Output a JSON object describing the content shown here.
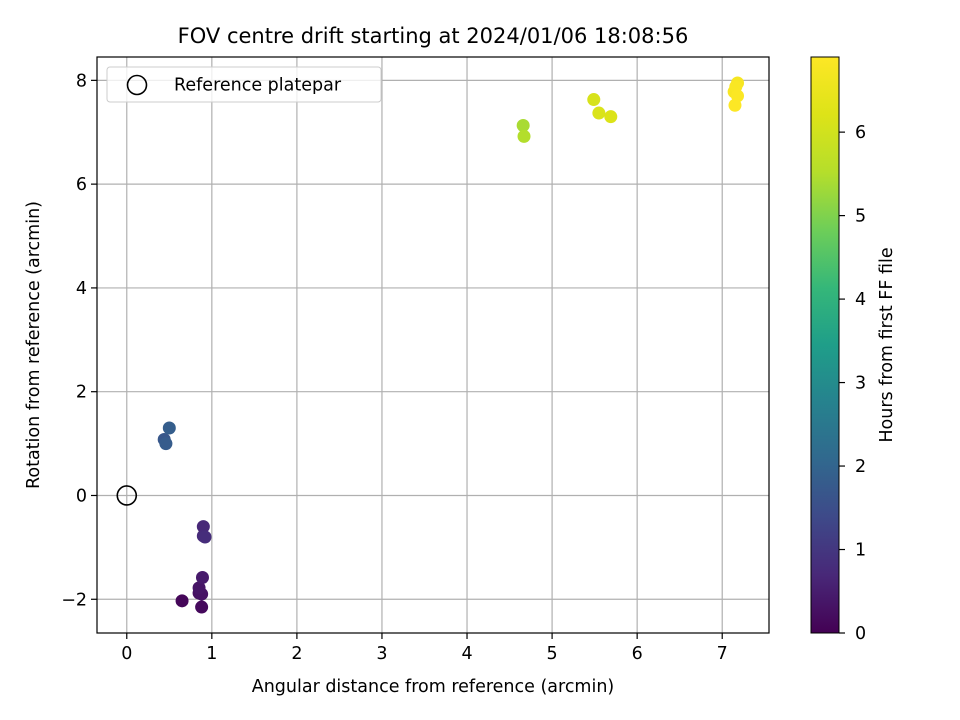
{
  "chart_data": {
    "type": "scatter",
    "title": "FOV centre drift starting at 2024/01/06 18:08:56",
    "xlabel": "Angular distance from reference (arcmin)",
    "ylabel": "Rotation from reference (arcmin)",
    "xlim": [
      -0.35,
      7.55
    ],
    "ylim": [
      -2.65,
      8.45
    ],
    "xticks": [
      0,
      1,
      2,
      3,
      4,
      5,
      6,
      7
    ],
    "yticks": [
      -2,
      0,
      2,
      4,
      6,
      8
    ],
    "grid": true,
    "legend": {
      "placement": "top-left",
      "entries": [
        "Reference platepar"
      ]
    },
    "reference_point": {
      "x": 0,
      "y": 0,
      "name": "Reference platepar"
    },
    "colorbar": {
      "label": "Hours from first FF file",
      "range": [
        0,
        6.9
      ],
      "ticks": [
        0,
        1,
        2,
        3,
        4,
        5,
        6
      ],
      "colormap": "viridis"
    },
    "points": [
      {
        "x": 0.65,
        "y": -2.03,
        "c": 0.1
      },
      {
        "x": 0.88,
        "y": -2.15,
        "c": 0.15
      },
      {
        "x": 0.85,
        "y": -1.88,
        "c": 0.25
      },
      {
        "x": 0.88,
        "y": -1.9,
        "c": 0.3
      },
      {
        "x": 0.85,
        "y": -1.78,
        "c": 0.35
      },
      {
        "x": 0.89,
        "y": -1.58,
        "c": 0.45
      },
      {
        "x": 0.9,
        "y": -0.6,
        "c": 0.7
      },
      {
        "x": 0.9,
        "y": -0.78,
        "c": 0.75
      },
      {
        "x": 0.92,
        "y": -0.8,
        "c": 0.8
      },
      {
        "x": 0.44,
        "y": 1.08,
        "c": 1.7
      },
      {
        "x": 0.46,
        "y": 1.0,
        "c": 1.8
      },
      {
        "x": 0.5,
        "y": 1.3,
        "c": 1.85
      },
      {
        "x": 4.66,
        "y": 7.13,
        "c": 5.4
      },
      {
        "x": 4.67,
        "y": 6.92,
        "c": 5.5
      },
      {
        "x": 5.49,
        "y": 7.63,
        "c": 6.1
      },
      {
        "x": 5.55,
        "y": 7.37,
        "c": 6.15
      },
      {
        "x": 5.69,
        "y": 7.3,
        "c": 6.2
      },
      {
        "x": 7.18,
        "y": 7.95,
        "c": 6.75
      },
      {
        "x": 7.14,
        "y": 7.78,
        "c": 6.8
      },
      {
        "x": 7.16,
        "y": 7.88,
        "c": 6.82
      },
      {
        "x": 7.18,
        "y": 7.7,
        "c": 6.85
      },
      {
        "x": 7.15,
        "y": 7.52,
        "c": 6.88
      }
    ]
  }
}
